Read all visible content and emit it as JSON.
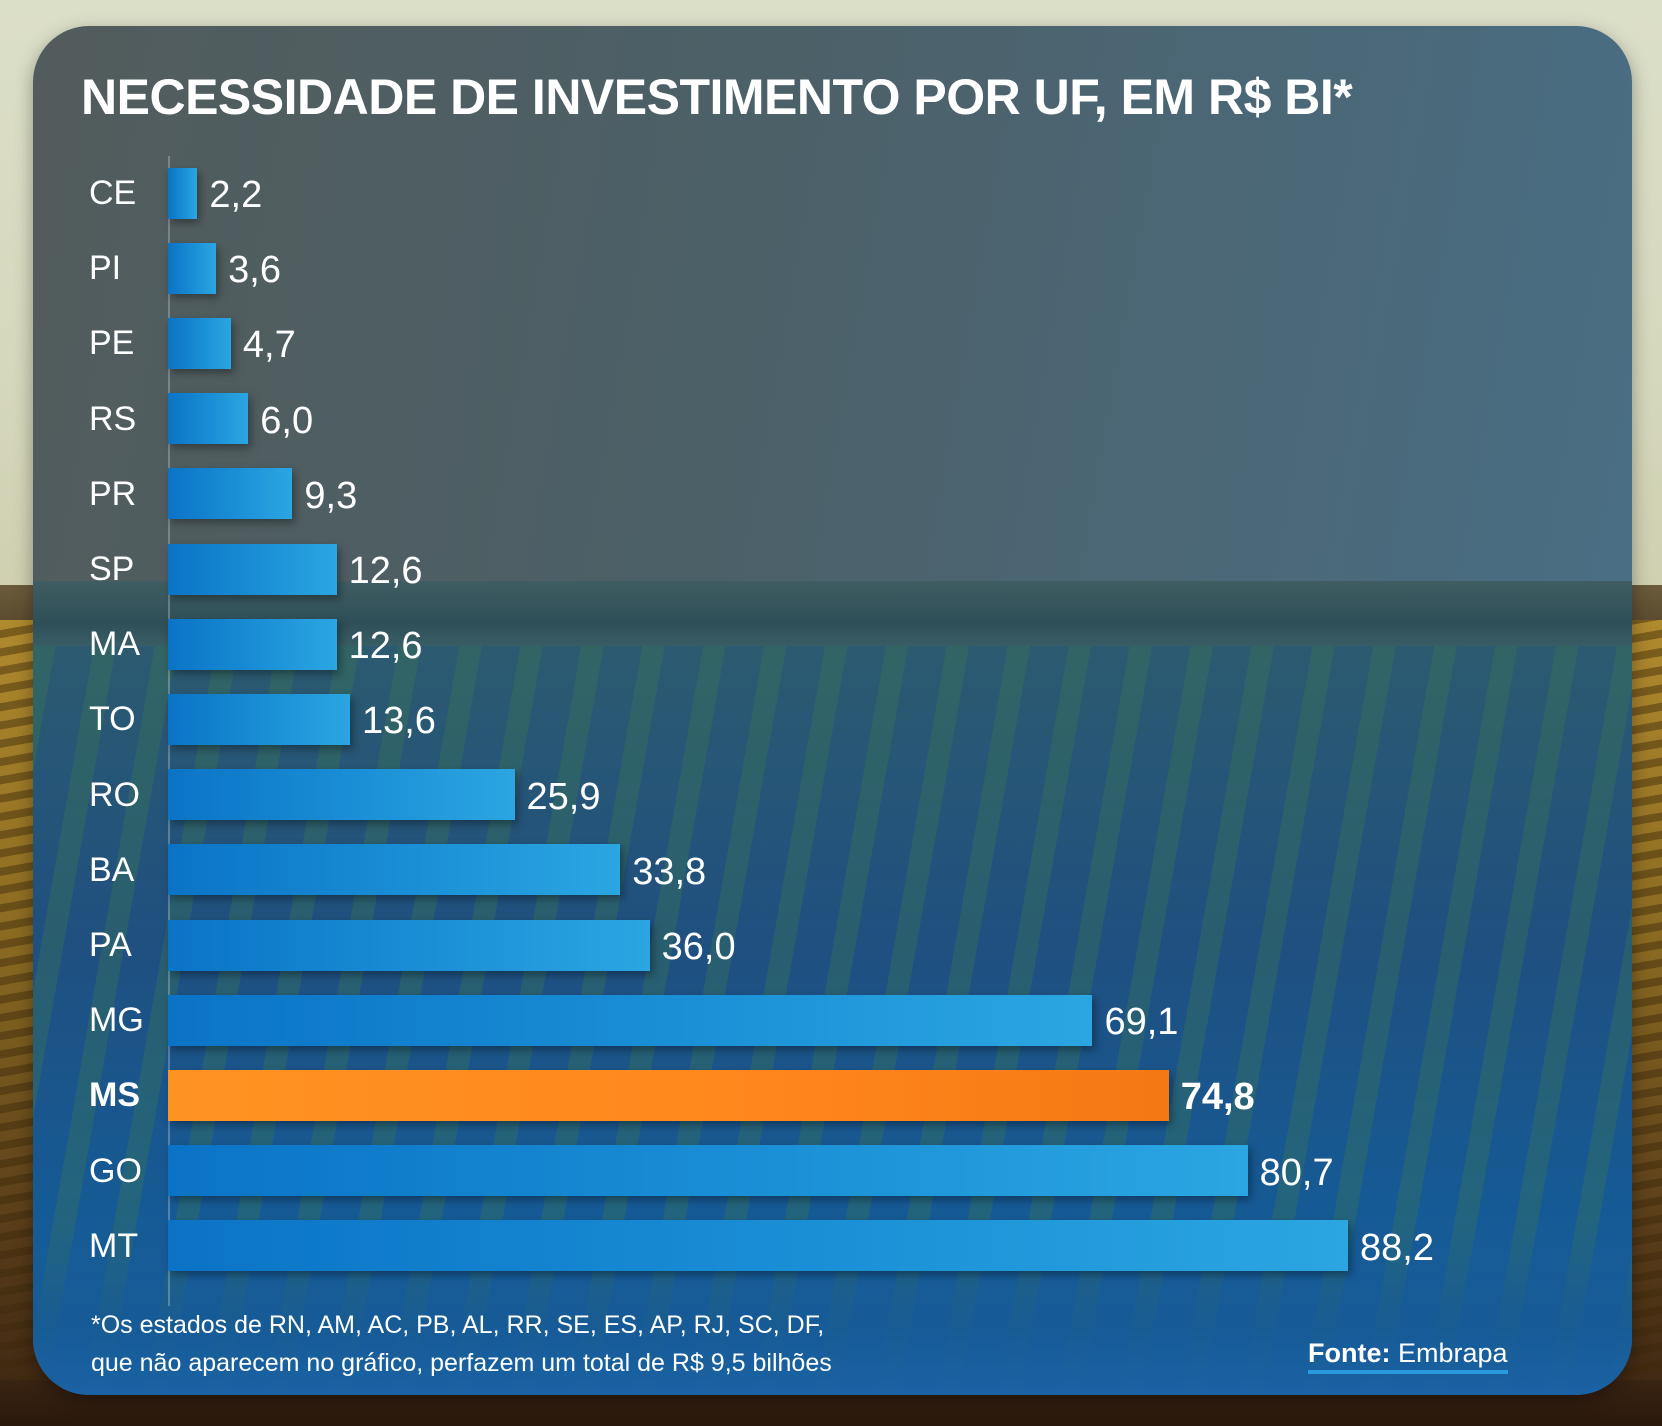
{
  "title": "NECESSIDADE DE INVESTIMENTO POR UF, EM R$ BI*",
  "footnote": {
    "line1": "*Os estados de RN, AM, AC, PB, AL, RR, SE, ES, AP, RJ, SC, DF,",
    "line2": "que não aparecem no gráfico, perfazem um total de R$ 9,5 bilhões"
  },
  "source": {
    "label": "Fonte:",
    "name": "Embrapa"
  },
  "colors": {
    "bar": "#1a8fd6",
    "highlight": "#ff861c",
    "text": "#ffffff",
    "source_underline": "#2b98dc"
  },
  "chart_data": {
    "type": "bar",
    "orientation": "horizontal",
    "title": "NECESSIDADE DE INVESTIMENTO POR UF, EM R$ BI*",
    "xlabel": "",
    "ylabel": "",
    "unit": "R$ bi",
    "categories": [
      "CE",
      "PI",
      "PE",
      "RS",
      "PR",
      "SP",
      "MA",
      "TO",
      "RO",
      "BA",
      "PA",
      "MG",
      "MS",
      "GO",
      "MT"
    ],
    "values": [
      2.2,
      3.6,
      4.7,
      6.0,
      9.3,
      12.6,
      12.6,
      13.6,
      25.9,
      33.8,
      36.0,
      69.1,
      74.8,
      80.7,
      88.2
    ],
    "value_labels": [
      "2,2",
      "3,6",
      "4,7",
      "6,0",
      "9,3",
      "12,6",
      "12,6",
      "13,6",
      "25,9",
      "33,8",
      "36,0",
      "69,1",
      "74,8",
      "80,7",
      "88,2"
    ],
    "highlight": "MS",
    "xlim": [
      0,
      88.2
    ],
    "grid": false,
    "legend": "none"
  }
}
